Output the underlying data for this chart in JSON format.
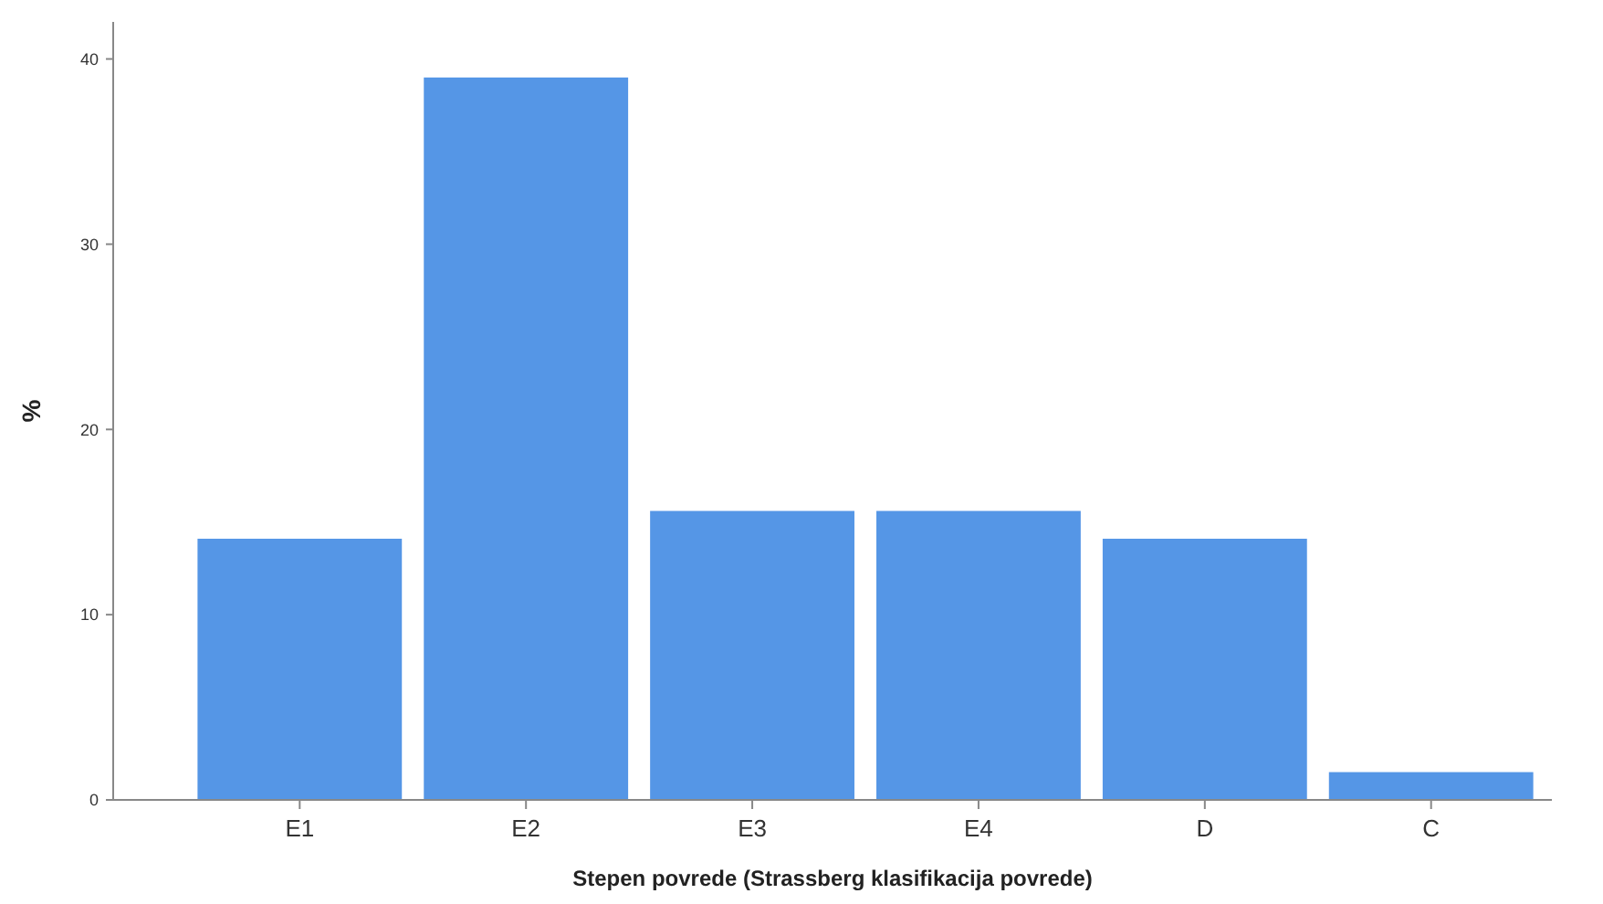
{
  "chart_data": {
    "type": "bar",
    "xlabel": "Stepen povrede (Strassberg klasifikacija povrede)",
    "ylabel": "%",
    "categories": [
      "E1",
      "E2",
      "E3",
      "E4",
      "D",
      "C"
    ],
    "values": [
      14.1,
      39.0,
      15.6,
      15.6,
      14.1,
      1.5
    ],
    "color": "#5596e6",
    "ylim": [
      0,
      42
    ],
    "yticks": [
      0,
      10,
      20,
      30,
      40
    ],
    "grid": false
  }
}
